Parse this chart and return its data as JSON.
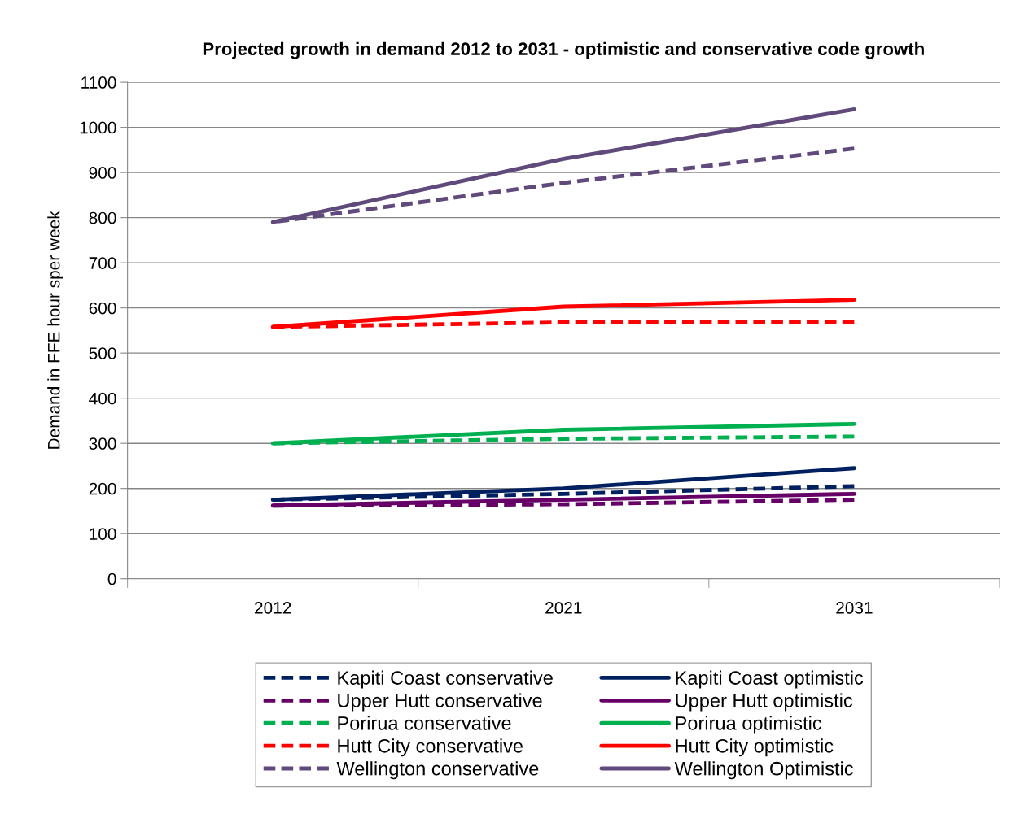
{
  "chart_data": {
    "type": "line",
    "title": "Projected growth in demand 2012 to 2031 - optimistic and conservative code growth",
    "ylabel": "Demand in FFE hour sper week",
    "categories": [
      "2012",
      "2021",
      "2031"
    ],
    "ylim": [
      0,
      1100
    ],
    "yticks": [
      0,
      100,
      200,
      300,
      400,
      500,
      600,
      700,
      800,
      900,
      1000,
      1100
    ],
    "grid": "y",
    "legend": "bottom",
    "marker": "none",
    "series": [
      {
        "name": "Kapiti Coast conservative",
        "color": "#002060",
        "line_style": "dashed",
        "values": [
          175,
          188,
          205
        ]
      },
      {
        "name": "Kapiti Coast optimistic",
        "color": "#002060",
        "line_style": "solid",
        "values": [
          175,
          200,
          245
        ]
      },
      {
        "name": "Upper Hutt conservative",
        "color": "#660066",
        "line_style": "dashed",
        "values": [
          162,
          165,
          175
        ]
      },
      {
        "name": "Upper Hutt optimistic",
        "color": "#660066",
        "line_style": "solid",
        "values": [
          162,
          175,
          188
        ]
      },
      {
        "name": "Porirua conservative",
        "color": "#00b050",
        "line_style": "dashed",
        "values": [
          300,
          310,
          315
        ]
      },
      {
        "name": "Porirua optimistic",
        "color": "#00b050",
        "line_style": "solid",
        "values": [
          300,
          330,
          343
        ]
      },
      {
        "name": "Hutt City conservative",
        "color": "#ff0000",
        "line_style": "dashed",
        "values": [
          558,
          568,
          568
        ]
      },
      {
        "name": "Hutt City optimistic",
        "color": "#ff0000",
        "line_style": "solid",
        "values": [
          558,
          603,
          618
        ]
      },
      {
        "name": "Wellington conservative",
        "color": "#604a7b",
        "line_style": "dashed",
        "values": [
          790,
          877,
          953
        ]
      },
      {
        "name": "Wellington Optimistic",
        "color": "#604a7b",
        "line_style": "solid",
        "values": [
          790,
          930,
          1040
        ]
      }
    ]
  }
}
